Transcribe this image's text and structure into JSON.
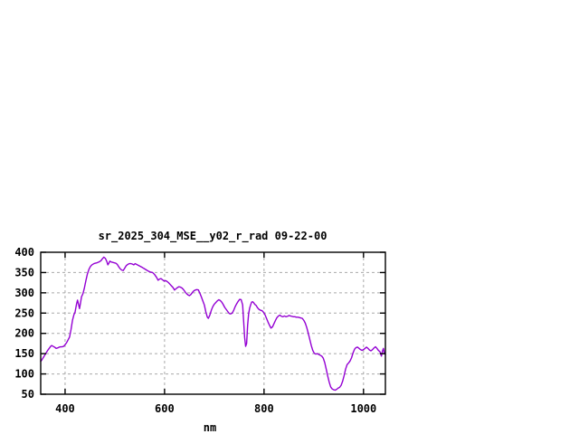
{
  "title": "sr_2025_304_MSE__y02_r_rad 09-22-00",
  "colors": {
    "background": "#ffffff",
    "axis": "#000000",
    "grid": "#a9a9a9",
    "line": "#9400d3"
  },
  "chart_data": {
    "type": "line",
    "title": "sr_2025_304_MSE__y02_r_rad 09-22-00",
    "xlabel": "nm",
    "ylabel": "",
    "xlim": [
      351,
      1044
    ],
    "ylim": [
      50,
      400
    ],
    "xticks": [
      400,
      600,
      800,
      1000
    ],
    "yticks": [
      400,
      350,
      300,
      250,
      200,
      150,
      100,
      50
    ],
    "grid": true,
    "legend_position": "none",
    "series": [
      {
        "name": "sr_2025_304_MSE__y02_r_rad",
        "color": "#9400d3",
        "points": [
          [
            351,
            131
          ],
          [
            353,
            134
          ],
          [
            356,
            140
          ],
          [
            359,
            146
          ],
          [
            362,
            152
          ],
          [
            365,
            158
          ],
          [
            368,
            163
          ],
          [
            371,
            168
          ],
          [
            373,
            170
          ],
          [
            376,
            168
          ],
          [
            379,
            166
          ],
          [
            382,
            163
          ],
          [
            385,
            164
          ],
          [
            388,
            166
          ],
          [
            391,
            167
          ],
          [
            394,
            167
          ],
          [
            397,
            168
          ],
          [
            400,
            172
          ],
          [
            403,
            177
          ],
          [
            406,
            184
          ],
          [
            409,
            191
          ],
          [
            412,
            210
          ],
          [
            415,
            233
          ],
          [
            418,
            247
          ],
          [
            420,
            252
          ],
          [
            423,
            272
          ],
          [
            425,
            282
          ],
          [
            427,
            272
          ],
          [
            429,
            261
          ],
          [
            431,
            275
          ],
          [
            433,
            290
          ],
          [
            436,
            298
          ],
          [
            439,
            313
          ],
          [
            442,
            331
          ],
          [
            445,
            347
          ],
          [
            448,
            358
          ],
          [
            451,
            365
          ],
          [
            454,
            369
          ],
          [
            458,
            372
          ],
          [
            461,
            373
          ],
          [
            464,
            374
          ],
          [
            468,
            376
          ],
          [
            472,
            379
          ],
          [
            475,
            384
          ],
          [
            478,
            388
          ],
          [
            481,
            385
          ],
          [
            484,
            377
          ],
          [
            486,
            369
          ],
          [
            488,
            373
          ],
          [
            490,
            378
          ],
          [
            493,
            376
          ],
          [
            496,
            375
          ],
          [
            499,
            374
          ],
          [
            502,
            373
          ],
          [
            505,
            370
          ],
          [
            508,
            364
          ],
          [
            511,
            359
          ],
          [
            514,
            356
          ],
          [
            517,
            355
          ],
          [
            520,
            361
          ],
          [
            523,
            367
          ],
          [
            526,
            370
          ],
          [
            529,
            372
          ],
          [
            532,
            372
          ],
          [
            535,
            371
          ],
          [
            538,
            369
          ],
          [
            541,
            372
          ],
          [
            544,
            370
          ],
          [
            547,
            368
          ],
          [
            550,
            366
          ],
          [
            553,
            364
          ],
          [
            556,
            362
          ],
          [
            560,
            359
          ],
          [
            564,
            356
          ],
          [
            568,
            353
          ],
          [
            572,
            351
          ],
          [
            576,
            350
          ],
          [
            580,
            345
          ],
          [
            584,
            338
          ],
          [
            587,
            331
          ],
          [
            590,
            334
          ],
          [
            593,
            335
          ],
          [
            596,
            332
          ],
          [
            599,
            329
          ],
          [
            602,
            330
          ],
          [
            605,
            328
          ],
          [
            608,
            325
          ],
          [
            611,
            321
          ],
          [
            614,
            317
          ],
          [
            617,
            313
          ],
          [
            620,
            307
          ],
          [
            623,
            310
          ],
          [
            626,
            313
          ],
          [
            629,
            315
          ],
          [
            632,
            314
          ],
          [
            635,
            312
          ],
          [
            638,
            308
          ],
          [
            641,
            303
          ],
          [
            644,
            298
          ],
          [
            647,
            295
          ],
          [
            650,
            293
          ],
          [
            653,
            296
          ],
          [
            656,
            301
          ],
          [
            659,
            305
          ],
          [
            662,
            307
          ],
          [
            665,
            308
          ],
          [
            668,
            307
          ],
          [
            671,
            299
          ],
          [
            674,
            290
          ],
          [
            677,
            280
          ],
          [
            680,
            270
          ],
          [
            683,
            253
          ],
          [
            686,
            240
          ],
          [
            688,
            237
          ],
          [
            691,
            245
          ],
          [
            694,
            257
          ],
          [
            697,
            266
          ],
          [
            700,
            272
          ],
          [
            703,
            276
          ],
          [
            706,
            280
          ],
          [
            709,
            283
          ],
          [
            712,
            281
          ],
          [
            715,
            277
          ],
          [
            718,
            271
          ],
          [
            721,
            264
          ],
          [
            724,
            259
          ],
          [
            727,
            254
          ],
          [
            730,
            249
          ],
          [
            733,
            248
          ],
          [
            736,
            250
          ],
          [
            739,
            257
          ],
          [
            742,
            266
          ],
          [
            745,
            273
          ],
          [
            748,
            279
          ],
          [
            751,
            284
          ],
          [
            754,
            283
          ],
          [
            757,
            270
          ],
          [
            759,
            230
          ],
          [
            761,
            190
          ],
          [
            763,
            168
          ],
          [
            765,
            175
          ],
          [
            767,
            220
          ],
          [
            769,
            248
          ],
          [
            771,
            262
          ],
          [
            773,
            270
          ],
          [
            775,
            277
          ],
          [
            777,
            278
          ],
          [
            779,
            276
          ],
          [
            781,
            272
          ],
          [
            784,
            269
          ],
          [
            787,
            263
          ],
          [
            790,
            259
          ],
          [
            793,
            257
          ],
          [
            796,
            256
          ],
          [
            799,
            252
          ],
          [
            802,
            246
          ],
          [
            805,
            237
          ],
          [
            808,
            228
          ],
          [
            811,
            220
          ],
          [
            814,
            213
          ],
          [
            817,
            216
          ],
          [
            820,
            224
          ],
          [
            823,
            232
          ],
          [
            826,
            239
          ],
          [
            829,
            243
          ],
          [
            832,
            245
          ],
          [
            835,
            242
          ],
          [
            838,
            241
          ],
          [
            841,
            243
          ],
          [
            844,
            241
          ],
          [
            847,
            242
          ],
          [
            850,
            244
          ],
          [
            853,
            243
          ],
          [
            856,
            242
          ],
          [
            859,
            241
          ],
          [
            862,
            241
          ],
          [
            865,
            240
          ],
          [
            868,
            240
          ],
          [
            871,
            239
          ],
          [
            874,
            238
          ],
          [
            877,
            237
          ],
          [
            880,
            232
          ],
          [
            883,
            225
          ],
          [
            886,
            214
          ],
          [
            889,
            200
          ],
          [
            892,
            185
          ],
          [
            895,
            170
          ],
          [
            898,
            158
          ],
          [
            901,
            151
          ],
          [
            904,
            149
          ],
          [
            907,
            150
          ],
          [
            910,
            148
          ],
          [
            913,
            146
          ],
          [
            916,
            144
          ],
          [
            919,
            139
          ],
          [
            922,
            128
          ],
          [
            925,
            112
          ],
          [
            928,
            95
          ],
          [
            931,
            80
          ],
          [
            934,
            68
          ],
          [
            937,
            63
          ],
          [
            940,
            61
          ],
          [
            943,
            60
          ],
          [
            946,
            62
          ],
          [
            949,
            65
          ],
          [
            952,
            67
          ],
          [
            955,
            72
          ],
          [
            958,
            82
          ],
          [
            961,
            96
          ],
          [
            964,
            112
          ],
          [
            967,
            123
          ],
          [
            970,
            127
          ],
          [
            973,
            132
          ],
          [
            976,
            140
          ],
          [
            979,
            152
          ],
          [
            982,
            161
          ],
          [
            985,
            165
          ],
          [
            988,
            166
          ],
          [
            991,
            163
          ],
          [
            994,
            160
          ],
          [
            997,
            158
          ],
          [
            1000,
            160
          ],
          [
            1003,
            163
          ],
          [
            1006,
            166
          ],
          [
            1009,
            163
          ],
          [
            1012,
            159
          ],
          [
            1015,
            157
          ],
          [
            1018,
            160
          ],
          [
            1021,
            164
          ],
          [
            1024,
            167
          ],
          [
            1027,
            163
          ],
          [
            1030,
            158
          ],
          [
            1033,
            155
          ],
          [
            1036,
            144
          ],
          [
            1038,
            156
          ],
          [
            1040,
            163
          ],
          [
            1042,
            150
          ],
          [
            1044,
            148
          ]
        ]
      }
    ]
  }
}
